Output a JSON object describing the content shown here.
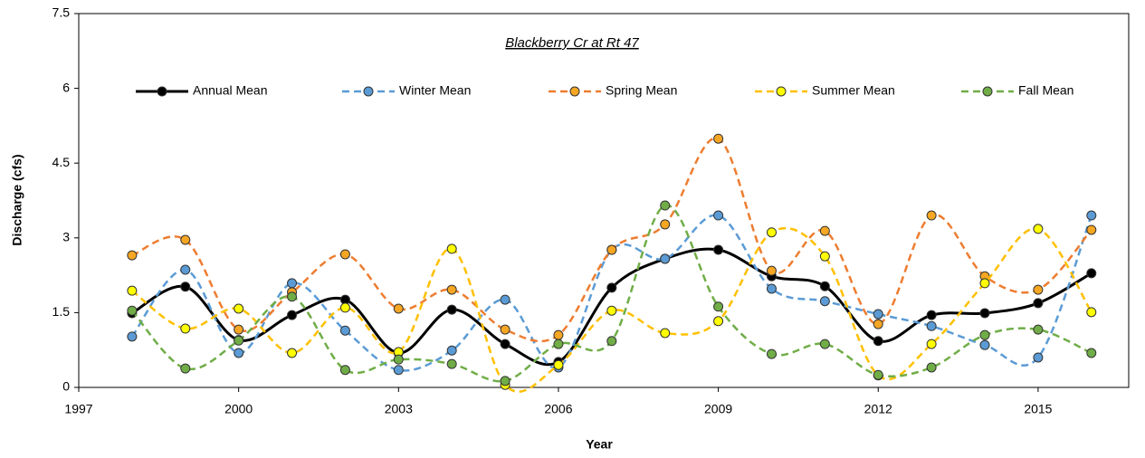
{
  "chart_data": {
    "type": "line",
    "title": "Blackberry Cr at Rt 47",
    "x_label": "Year",
    "y_label": "Discharge  (cfs)",
    "x": [
      1998,
      1999,
      2000,
      2001,
      2002,
      2003,
      2004,
      2005,
      2006,
      2007,
      2008,
      2009,
      2010,
      2011,
      2012,
      2013,
      2014,
      2015,
      2016
    ],
    "series": [
      {
        "name": "Annual Mean",
        "color": "#000000",
        "marker_color": "#000000",
        "dashed": false,
        "values": [
          1.49,
          2.02,
          0.95,
          1.45,
          1.76,
          0.69,
          1.56,
          0.87,
          0.51,
          2.0,
          2.58,
          2.76,
          2.23,
          2.03,
          0.93,
          1.45,
          1.49,
          1.69,
          2.29
        ]
      },
      {
        "name": "Winter Mean",
        "color": "#5b9bd5",
        "marker_color": "#5b9bd5",
        "dashed": true,
        "values": [
          1.02,
          2.36,
          0.69,
          2.09,
          1.14,
          0.35,
          0.74,
          1.76,
          0.4,
          2.76,
          2.58,
          3.45,
          1.98,
          1.73,
          1.47,
          1.23,
          0.85,
          0.6,
          3.45
        ]
      },
      {
        "name": "Spring Mean",
        "color": "#ed7d31",
        "marker_color": "#f5a623",
        "dashed": true,
        "values": [
          2.65,
          2.96,
          1.16,
          1.91,
          2.67,
          1.58,
          1.96,
          1.16,
          1.05,
          2.76,
          3.27,
          4.99,
          2.34,
          3.14,
          1.27,
          3.45,
          2.23,
          1.96,
          3.16
        ]
      },
      {
        "name": "Summer Mean",
        "color": "#ffc000",
        "marker_color": "#ffff00",
        "dashed": true,
        "values": [
          1.94,
          1.18,
          1.58,
          0.69,
          1.6,
          0.71,
          2.78,
          0.05,
          0.45,
          1.54,
          1.09,
          1.33,
          3.11,
          2.63,
          0.24,
          0.87,
          2.09,
          3.18,
          1.51
        ]
      },
      {
        "name": "Fall Mean",
        "color": "#70ad47",
        "marker_color": "#70ad47",
        "dashed": true,
        "values": [
          1.54,
          0.38,
          0.94,
          1.82,
          0.35,
          0.56,
          0.47,
          0.13,
          0.87,
          0.93,
          3.65,
          1.62,
          0.67,
          0.87,
          0.25,
          0.4,
          1.05,
          1.16,
          0.69
        ]
      }
    ],
    "xlim": [
      1997,
      2016.7
    ],
    "xticks": [
      1997,
      2000,
      2003,
      2006,
      2009,
      2012,
      2015
    ],
    "ylim": [
      0,
      7.5
    ],
    "yticks": [
      0,
      1.5,
      3,
      4.5,
      6,
      7.5
    ],
    "grid": false,
    "legend": "top"
  }
}
